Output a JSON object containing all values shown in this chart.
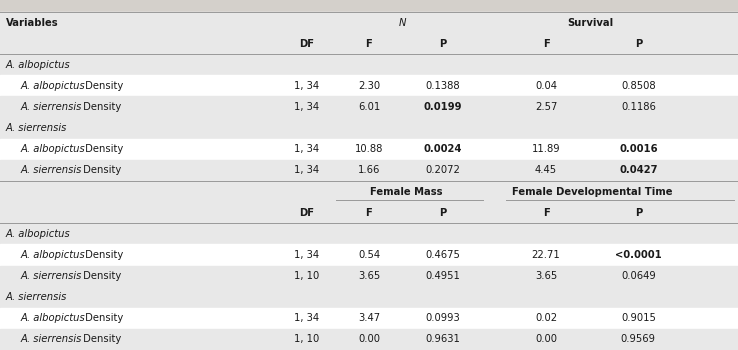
{
  "top_header1": "Variables",
  "top_col1_label": "N",
  "top_col2_label": "Survival",
  "sub_headers": [
    "DF",
    "F",
    "P",
    "F",
    "P"
  ],
  "section_labels_top": [
    "A. albopictus",
    "A. sierrensis"
  ],
  "top_data": [
    [
      "A. albopictus",
      "A. albopictus",
      "Density",
      "1, 34",
      "2.30",
      "0.1388",
      "0.04",
      "0.8508",
      false
    ],
    [
      "A. albopictus",
      "A. sierrensis",
      "Density",
      "1, 34",
      "6.01",
      "0.0199",
      "2.57",
      "0.1186",
      true
    ],
    [
      "A. sierrensis",
      "A. albopictus",
      "Density",
      "1, 34",
      "10.88",
      "0.0024",
      "11.89",
      "0.0016",
      true
    ],
    [
      "A. sierrensis",
      "A. sierrensis",
      "Density",
      "1, 34",
      "1.66",
      "0.2072",
      "4.45",
      "0.0427",
      true
    ]
  ],
  "mid_col1_label": "Female Mass",
  "mid_col2_label": "Female Developmental Time",
  "section_labels_bot": [
    "A. albopictus",
    "A. sierrensis"
  ],
  "bottom_data": [
    [
      "A. albopictus",
      "A. albopictus",
      "Density",
      "1, 34",
      "0.54",
      "0.4675",
      "22.71",
      "<0.0001",
      true
    ],
    [
      "A. albopictus",
      "A. sierrensis",
      "Density",
      "1, 10",
      "3.65",
      "0.4951",
      "3.65",
      "0.0649",
      false
    ],
    [
      "A. sierrensis",
      "A. albopictus",
      "Density",
      "1, 34",
      "3.47",
      "0.0993",
      "0.02",
      "0.9015",
      false
    ],
    [
      "A. sierrensis",
      "A. sierrensis",
      "Density",
      "1, 10",
      "0.00",
      "0.9631",
      "0.00",
      "0.9569",
      false
    ]
  ],
  "bold_p_top": [
    false,
    true,
    true,
    true
  ],
  "bold_survf_top": [
    false,
    false,
    false,
    false
  ],
  "bold_survp_top": [
    false,
    false,
    true,
    true
  ],
  "bold_p_bot": [
    true,
    false,
    false,
    false
  ],
  "bg_grey": "#e8e8e8",
  "bg_white": "#ffffff",
  "bg_top_band": "#d4d0cb",
  "line_color": "#999999",
  "text_color": "#1a1a1a",
  "fs": 7.2,
  "figsize": [
    7.38,
    3.5
  ],
  "dpi": 100
}
